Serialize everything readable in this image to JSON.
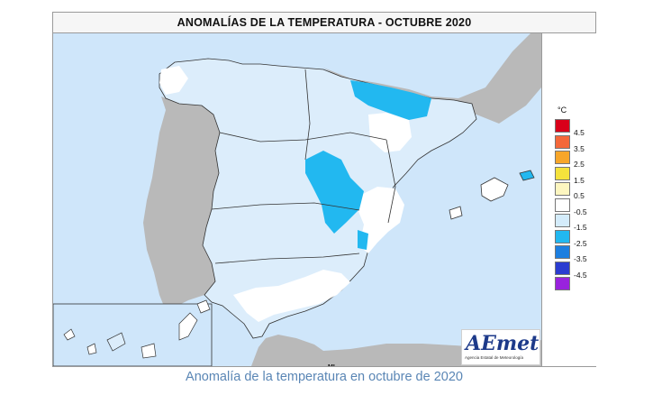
{
  "map": {
    "title": "ANOMALÍAS DE LA TEMPERATURA - OCTUBRE 2020",
    "small_label": "MI"
  },
  "legend": {
    "unit": "°C",
    "items": [
      {
        "label": "4.5",
        "color": "#d9001a"
      },
      {
        "label": "3.5",
        "color": "#f4683a"
      },
      {
        "label": "2.5",
        "color": "#f7a62a"
      },
      {
        "label": "1.5",
        "color": "#f5e23c"
      },
      {
        "label": "0.5",
        "color": "#fdf6c0"
      },
      {
        "label": "-0.5",
        "color": "#ffffff"
      },
      {
        "label": "-1.5",
        "color": "#d4ecfb"
      },
      {
        "label": "-2.5",
        "color": "#22b8f0"
      },
      {
        "label": "-3.5",
        "color": "#1d7fe0"
      },
      {
        "label": "-4.5",
        "color": "#2b3cd0"
      },
      {
        "label": "",
        "color": "#9922dd"
      }
    ]
  },
  "colors": {
    "sea": "#cfe6fa",
    "neighbor_land": "#b9b9b9",
    "light_anomaly": "#dcedfb",
    "strong_anomaly": "#22b8f0",
    "neutral": "#ffffff"
  },
  "logo": {
    "text": "AEmet",
    "subtitle": "Agencia Estatal de Meteorología"
  },
  "caption": "Anomalía de la temperatura en octubre de 2020"
}
